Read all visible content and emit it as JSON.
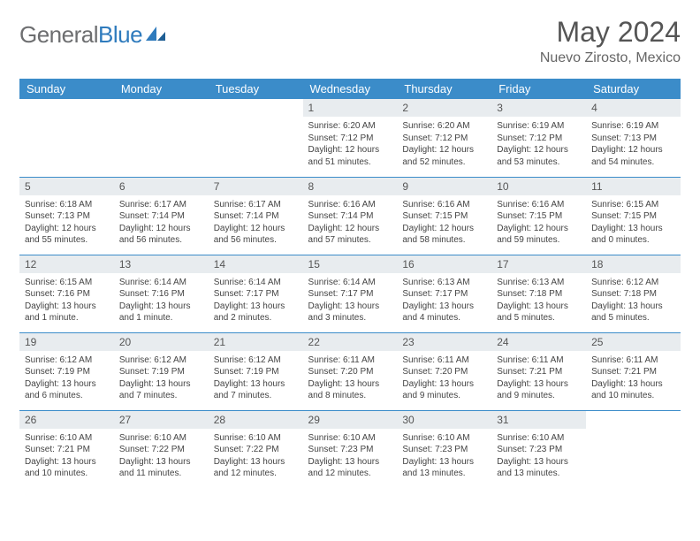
{
  "brand": {
    "part1": "General",
    "part2": "Blue"
  },
  "title": "May 2024",
  "location": "Nuevo Zirosto, Mexico",
  "colors": {
    "header_bg": "#3b8cc9",
    "header_text": "#ffffff",
    "daynum_bg": "#e8ecef",
    "rule": "#3b8cc9",
    "brand_gray": "#6d6e70",
    "brand_blue": "#2f7bbd"
  },
  "fonts": {
    "title_size": 32,
    "sub_size": 16,
    "th_size": 13,
    "cell_size": 10
  },
  "weekdays": [
    "Sunday",
    "Monday",
    "Tuesday",
    "Wednesday",
    "Thursday",
    "Friday",
    "Saturday"
  ],
  "weeks": [
    [
      null,
      null,
      null,
      {
        "d": "1",
        "sr": "6:20 AM",
        "ss": "7:12 PM",
        "dl": "12 hours and 51 minutes."
      },
      {
        "d": "2",
        "sr": "6:20 AM",
        "ss": "7:12 PM",
        "dl": "12 hours and 52 minutes."
      },
      {
        "d": "3",
        "sr": "6:19 AM",
        "ss": "7:12 PM",
        "dl": "12 hours and 53 minutes."
      },
      {
        "d": "4",
        "sr": "6:19 AM",
        "ss": "7:13 PM",
        "dl": "12 hours and 54 minutes."
      }
    ],
    [
      {
        "d": "5",
        "sr": "6:18 AM",
        "ss": "7:13 PM",
        "dl": "12 hours and 55 minutes."
      },
      {
        "d": "6",
        "sr": "6:17 AM",
        "ss": "7:14 PM",
        "dl": "12 hours and 56 minutes."
      },
      {
        "d": "7",
        "sr": "6:17 AM",
        "ss": "7:14 PM",
        "dl": "12 hours and 56 minutes."
      },
      {
        "d": "8",
        "sr": "6:16 AM",
        "ss": "7:14 PM",
        "dl": "12 hours and 57 minutes."
      },
      {
        "d": "9",
        "sr": "6:16 AM",
        "ss": "7:15 PM",
        "dl": "12 hours and 58 minutes."
      },
      {
        "d": "10",
        "sr": "6:16 AM",
        "ss": "7:15 PM",
        "dl": "12 hours and 59 minutes."
      },
      {
        "d": "11",
        "sr": "6:15 AM",
        "ss": "7:15 PM",
        "dl": "13 hours and 0 minutes."
      }
    ],
    [
      {
        "d": "12",
        "sr": "6:15 AM",
        "ss": "7:16 PM",
        "dl": "13 hours and 1 minute."
      },
      {
        "d": "13",
        "sr": "6:14 AM",
        "ss": "7:16 PM",
        "dl": "13 hours and 1 minute."
      },
      {
        "d": "14",
        "sr": "6:14 AM",
        "ss": "7:17 PM",
        "dl": "13 hours and 2 minutes."
      },
      {
        "d": "15",
        "sr": "6:14 AM",
        "ss": "7:17 PM",
        "dl": "13 hours and 3 minutes."
      },
      {
        "d": "16",
        "sr": "6:13 AM",
        "ss": "7:17 PM",
        "dl": "13 hours and 4 minutes."
      },
      {
        "d": "17",
        "sr": "6:13 AM",
        "ss": "7:18 PM",
        "dl": "13 hours and 5 minutes."
      },
      {
        "d": "18",
        "sr": "6:12 AM",
        "ss": "7:18 PM",
        "dl": "13 hours and 5 minutes."
      }
    ],
    [
      {
        "d": "19",
        "sr": "6:12 AM",
        "ss": "7:19 PM",
        "dl": "13 hours and 6 minutes."
      },
      {
        "d": "20",
        "sr": "6:12 AM",
        "ss": "7:19 PM",
        "dl": "13 hours and 7 minutes."
      },
      {
        "d": "21",
        "sr": "6:12 AM",
        "ss": "7:19 PM",
        "dl": "13 hours and 7 minutes."
      },
      {
        "d": "22",
        "sr": "6:11 AM",
        "ss": "7:20 PM",
        "dl": "13 hours and 8 minutes."
      },
      {
        "d": "23",
        "sr": "6:11 AM",
        "ss": "7:20 PM",
        "dl": "13 hours and 9 minutes."
      },
      {
        "d": "24",
        "sr": "6:11 AM",
        "ss": "7:21 PM",
        "dl": "13 hours and 9 minutes."
      },
      {
        "d": "25",
        "sr": "6:11 AM",
        "ss": "7:21 PM",
        "dl": "13 hours and 10 minutes."
      }
    ],
    [
      {
        "d": "26",
        "sr": "6:10 AM",
        "ss": "7:21 PM",
        "dl": "13 hours and 10 minutes."
      },
      {
        "d": "27",
        "sr": "6:10 AM",
        "ss": "7:22 PM",
        "dl": "13 hours and 11 minutes."
      },
      {
        "d": "28",
        "sr": "6:10 AM",
        "ss": "7:22 PM",
        "dl": "13 hours and 12 minutes."
      },
      {
        "d": "29",
        "sr": "6:10 AM",
        "ss": "7:23 PM",
        "dl": "13 hours and 12 minutes."
      },
      {
        "d": "30",
        "sr": "6:10 AM",
        "ss": "7:23 PM",
        "dl": "13 hours and 13 minutes."
      },
      {
        "d": "31",
        "sr": "6:10 AM",
        "ss": "7:23 PM",
        "dl": "13 hours and 13 minutes."
      },
      null
    ]
  ],
  "labels": {
    "sunrise": "Sunrise: ",
    "sunset": "Sunset: ",
    "daylight": "Daylight: "
  }
}
